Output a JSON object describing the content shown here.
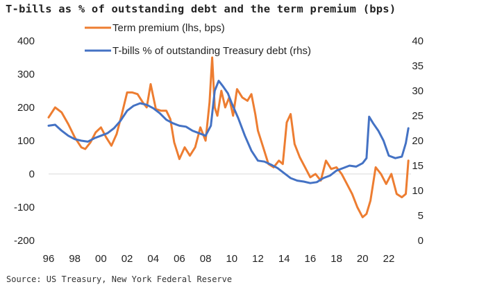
{
  "title": "T-bills as % of outstanding debt and the term premium (bps)",
  "source": "Source: US Treasury, New York Federal Reserve",
  "chart_data": {
    "type": "line",
    "title": "T-bills as % of outstanding debt and the term premium (bps)",
    "x_axis": {
      "label": "",
      "ticks": [
        "96",
        "98",
        "00",
        "02",
        "04",
        "06",
        "08",
        "10",
        "12",
        "14",
        "16",
        "18",
        "20",
        "22"
      ],
      "tick_values": [
        1996,
        1998,
        2000,
        2002,
        2004,
        2006,
        2008,
        2010,
        2012,
        2014,
        2016,
        2018,
        2020,
        2022
      ],
      "range": [
        1996,
        2023.7
      ]
    },
    "y_left": {
      "label": "",
      "range": [
        -200,
        400
      ],
      "ticks": [
        400,
        300,
        200,
        100,
        0,
        -100,
        -200
      ]
    },
    "y_right": {
      "label": "",
      "range": [
        0,
        40
      ],
      "ticks": [
        40,
        35,
        30,
        25,
        20,
        15,
        10,
        5,
        0
      ]
    },
    "zero_line": true,
    "grid": false,
    "legend": {
      "placement": "top-center"
    },
    "series": [
      {
        "name": "Term premium (lhs, bps)",
        "axis": "left",
        "color": "#ED7D31",
        "x": [
          1996.0,
          1996.5,
          1997.0,
          1997.5,
          1998.0,
          1998.5,
          1998.8,
          1999.2,
          1999.6,
          2000.0,
          2000.4,
          2000.8,
          2001.2,
          2001.6,
          2002.0,
          2002.4,
          2002.8,
          2003.2,
          2003.5,
          2003.8,
          2004.2,
          2004.6,
          2005.0,
          2005.3,
          2005.6,
          2006.0,
          2006.4,
          2006.8,
          2007.2,
          2007.6,
          2008.0,
          2008.3,
          2008.5,
          2008.7,
          2008.9,
          2009.2,
          2009.5,
          2009.8,
          2010.1,
          2010.4,
          2010.8,
          2011.2,
          2011.5,
          2011.8,
          2012.0,
          2012.4,
          2012.8,
          2013.2,
          2013.6,
          2013.9,
          2014.2,
          2014.5,
          2014.8,
          2015.2,
          2015.6,
          2016.0,
          2016.4,
          2016.8,
          2017.2,
          2017.6,
          2018.0,
          2018.4,
          2018.8,
          2019.2,
          2019.6,
          2020.0,
          2020.3,
          2020.6,
          2021.0,
          2021.4,
          2021.8,
          2022.2,
          2022.6,
          2023.0,
          2023.3,
          2023.5
        ],
        "values": [
          170,
          200,
          185,
          150,
          110,
          80,
          75,
          95,
          125,
          140,
          110,
          85,
          120,
          180,
          245,
          245,
          240,
          215,
          200,
          270,
          195,
          190,
          190,
          165,
          95,
          45,
          80,
          55,
          80,
          140,
          100,
          215,
          350,
          200,
          175,
          250,
          200,
          230,
          175,
          255,
          230,
          220,
          240,
          180,
          130,
          80,
          30,
          20,
          40,
          30,
          155,
          180,
          90,
          50,
          20,
          -10,
          0,
          -20,
          40,
          15,
          20,
          0,
          -30,
          -60,
          -100,
          -130,
          -120,
          -80,
          20,
          0,
          -30,
          0,
          -60,
          -70,
          -60,
          40
        ]
      },
      {
        "name": "T-bills % of outstanding Treasury debt (rhs)",
        "axis": "right",
        "color": "#4472C4",
        "x": [
          1996.0,
          1996.5,
          1997.0,
          1997.5,
          1998.0,
          1998.5,
          1999.0,
          1999.5,
          2000.0,
          2000.5,
          2001.0,
          2001.5,
          2002.0,
          2002.5,
          2003.0,
          2003.5,
          2004.0,
          2004.5,
          2005.0,
          2005.5,
          2006.0,
          2006.5,
          2007.0,
          2007.5,
          2008.0,
          2008.4,
          2008.7,
          2009.0,
          2009.3,
          2009.7,
          2010.0,
          2010.5,
          2011.0,
          2011.5,
          2012.0,
          2012.5,
          2013.0,
          2013.5,
          2014.0,
          2014.5,
          2015.0,
          2015.5,
          2016.0,
          2016.5,
          2017.0,
          2017.5,
          2018.0,
          2018.5,
          2019.0,
          2019.5,
          2020.0,
          2020.3,
          2020.5,
          2020.8,
          2021.2,
          2021.6,
          2022.0,
          2022.5,
          2023.0,
          2023.3,
          2023.5
        ],
        "values": [
          23.0,
          23.2,
          22.0,
          21.0,
          20.3,
          20.0,
          19.8,
          20.5,
          21.0,
          21.5,
          22.5,
          24.0,
          26.0,
          27.0,
          27.5,
          27.2,
          26.5,
          25.5,
          24.2,
          23.5,
          23.0,
          22.8,
          22.0,
          21.5,
          21.0,
          23.0,
          30.0,
          32.0,
          31.0,
          29.5,
          27.5,
          24.5,
          21.0,
          18.0,
          16.0,
          15.8,
          15.2,
          14.5,
          13.5,
          12.5,
          12.0,
          11.8,
          11.5,
          11.7,
          12.5,
          13.0,
          14.0,
          14.5,
          15.0,
          14.8,
          15.5,
          16.5,
          24.8,
          23.5,
          22.0,
          20.0,
          17.0,
          16.5,
          16.8,
          19.5,
          22.5
        ]
      }
    ]
  }
}
